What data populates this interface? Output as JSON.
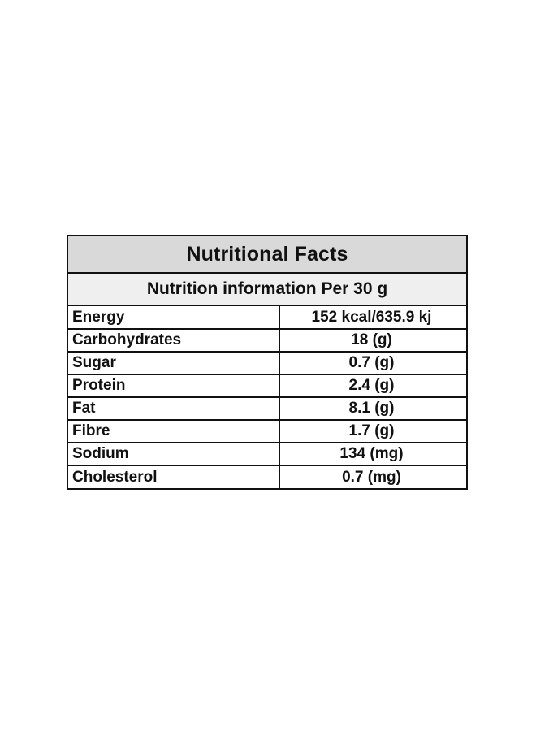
{
  "panel": {
    "title": "Nutritional Facts",
    "subtitle": "Nutrition information Per 30 g",
    "rows": [
      {
        "label": "Energy",
        "value": "152 kcal/635.9 kj"
      },
      {
        "label": "Carbohydrates",
        "value": "18 (g)"
      },
      {
        "label": "Sugar",
        "value": "0.7 (g)"
      },
      {
        "label": "Protein",
        "value": "2.4 (g)"
      },
      {
        "label": "Fat",
        "value": "8.1 (g)"
      },
      {
        "label": "Fibre",
        "value": "1.7 (g)"
      },
      {
        "label": "Sodium",
        "value": "134 (mg)"
      },
      {
        "label": "Cholesterol",
        "value": "0.7 (mg)"
      }
    ]
  },
  "colors": {
    "title_bg": "#d9d9d9",
    "subtitle_bg": "#efefef",
    "border": "#111111"
  }
}
